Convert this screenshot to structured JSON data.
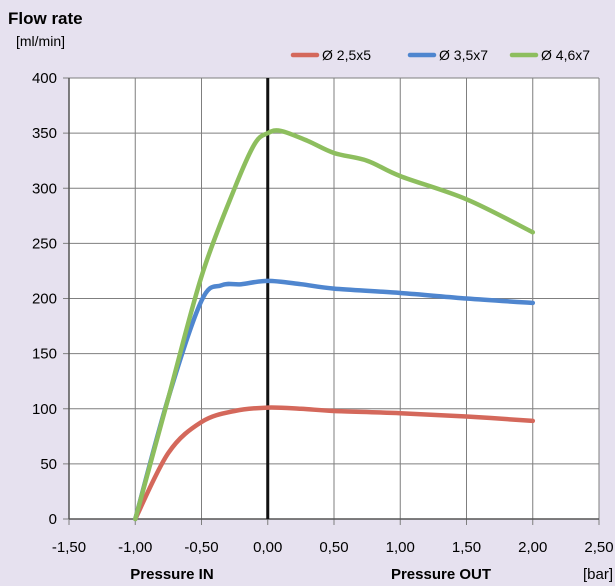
{
  "chart_data": {
    "type": "line",
    "title": "Flow rate",
    "ylabel": "[ml/min]",
    "xunit": "[bar]",
    "x_section_labels": [
      "Pressure IN",
      "Pressure OUT"
    ],
    "xlim": [
      -1.5,
      2.5
    ],
    "ylim": [
      0,
      400
    ],
    "xticks": [
      "-1,50",
      "-1,00",
      "-0,50",
      "0,00",
      "0,50",
      "1,00",
      "1,50",
      "2,00",
      "2,50"
    ],
    "xtick_values": [
      -1.5,
      -1.0,
      -0.5,
      0.0,
      0.5,
      1.0,
      1.5,
      2.0,
      2.5
    ],
    "yticks": [
      "0",
      "50",
      "100",
      "150",
      "200",
      "250",
      "300",
      "350",
      "400"
    ],
    "ytick_values": [
      0,
      50,
      100,
      150,
      200,
      250,
      300,
      350,
      400
    ],
    "grid": true,
    "legend_position": "top-right",
    "series": [
      {
        "name": "Ø 2,5x5",
        "color": "#d4685b",
        "points": [
          [
            -1.0,
            0
          ],
          [
            -0.75,
            60
          ],
          [
            -0.5,
            88
          ],
          [
            -0.25,
            98
          ],
          [
            0.0,
            101
          ],
          [
            0.25,
            100
          ],
          [
            0.5,
            98
          ],
          [
            1.0,
            96
          ],
          [
            1.5,
            93
          ],
          [
            2.0,
            89
          ]
        ]
      },
      {
        "name": "Ø 3,5x7",
        "color": "#4f86cf",
        "points": [
          [
            -1.0,
            0
          ],
          [
            -0.75,
            110
          ],
          [
            -0.5,
            198
          ],
          [
            -0.35,
            212
          ],
          [
            -0.2,
            213
          ],
          [
            0.0,
            216
          ],
          [
            0.25,
            213
          ],
          [
            0.5,
            209
          ],
          [
            1.0,
            205
          ],
          [
            1.5,
            200
          ],
          [
            2.0,
            196
          ]
        ]
      },
      {
        "name": "Ø 4,6x7",
        "color": "#8dbe5e",
        "points": [
          [
            -1.0,
            0
          ],
          [
            -0.75,
            110
          ],
          [
            -0.5,
            220
          ],
          [
            -0.25,
            300
          ],
          [
            -0.1,
            340
          ],
          [
            0.0,
            350
          ],
          [
            0.1,
            352
          ],
          [
            0.3,
            343
          ],
          [
            0.5,
            332
          ],
          [
            0.75,
            325
          ],
          [
            1.0,
            311
          ],
          [
            1.5,
            290
          ],
          [
            2.0,
            260
          ]
        ]
      }
    ]
  }
}
